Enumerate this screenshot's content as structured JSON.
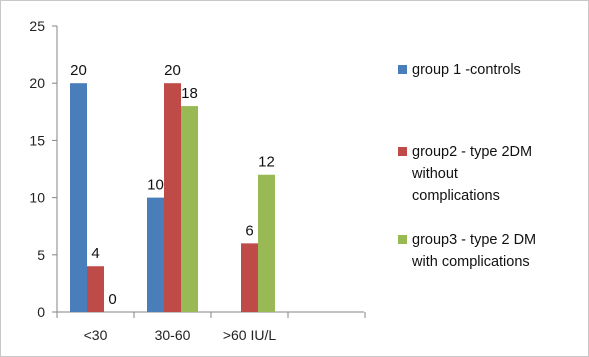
{
  "chart_data": {
    "type": "bar",
    "categories": [
      "<30",
      "30-60",
      ">60 IU/L"
    ],
    "series": [
      {
        "name": "group 1 -controls",
        "values": [
          20,
          10,
          null
        ],
        "color": "#4a7ebb"
      },
      {
        "name": "group2 - type 2DM without complications",
        "values": [
          4,
          20,
          6
        ],
        "color": "#be4b48"
      },
      {
        "name": "group3 - type 2 DM with complications",
        "values": [
          0,
          18,
          12
        ],
        "color": "#98b954"
      }
    ],
    "data_labels": [
      [
        "20",
        "10",
        ""
      ],
      [
        "4",
        "20",
        "6"
      ],
      [
        "0",
        "18",
        "12"
      ]
    ],
    "title": "",
    "xlabel": "",
    "ylabel": "",
    "ylim": [
      0,
      25
    ],
    "yticks": [
      0,
      5,
      10,
      15,
      20,
      25
    ],
    "grid": false,
    "legend_position": "right"
  },
  "legend": {
    "items": [
      {
        "lines": [
          "group 1 -controls"
        ]
      },
      {
        "lines": [
          "group2 - type 2DM",
          "without",
          "complications"
        ]
      },
      {
        "lines": [
          "group3 - type 2 DM",
          "with complications"
        ]
      }
    ]
  }
}
